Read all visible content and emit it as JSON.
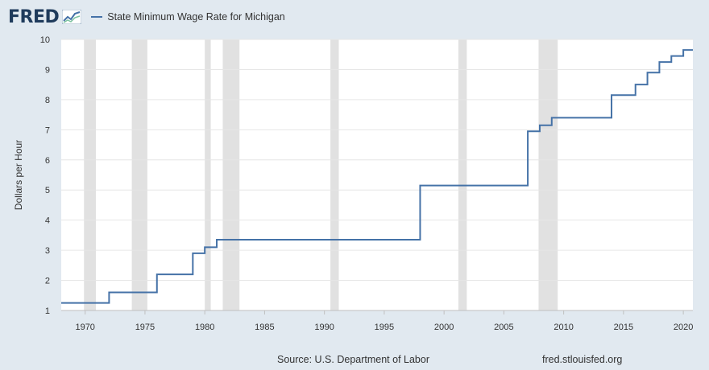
{
  "header": {
    "logo": "FRED",
    "logo_icon": "chart-line-icon"
  },
  "footer": {
    "source": "Source: U.S. Department of Labor",
    "url": "fred.stlouisfed.org"
  },
  "colors": {
    "background": "#e1e9f0",
    "plot_background": "#ffffff",
    "series": "#4572a7",
    "recession": "#e1e1e1",
    "grid": "#e6e6e6"
  },
  "chart_data": {
    "type": "line",
    "step": true,
    "title": "",
    "xlabel": "",
    "ylabel": "Dollars per Hour",
    "xlim": [
      1968,
      2020.8
    ],
    "ylim": [
      1,
      10
    ],
    "x_ticks": [
      1970,
      1975,
      1980,
      1985,
      1990,
      1995,
      2000,
      2005,
      2010,
      2015,
      2020
    ],
    "y_ticks": [
      1,
      2,
      3,
      4,
      5,
      6,
      7,
      8,
      9,
      10
    ],
    "grid": true,
    "legend": "top-left",
    "recessions": [
      [
        1969.9,
        1970.9
      ],
      [
        1973.9,
        1975.2
      ],
      [
        1980.0,
        1980.5
      ],
      [
        1981.5,
        1982.9
      ],
      [
        1990.5,
        1991.2
      ],
      [
        2001.2,
        2001.9
      ],
      [
        2007.9,
        2009.5
      ]
    ],
    "series": [
      {
        "name": "State Minimum Wage Rate for Michigan",
        "x": [
          1968,
          1972,
          1976,
          1979,
          1980,
          1981,
          1998,
          2007,
          2008,
          2009,
          2014,
          2016,
          2017,
          2018,
          2019,
          2020,
          2020.8
        ],
        "values": [
          1.25,
          1.6,
          2.2,
          2.9,
          3.1,
          3.35,
          5.15,
          6.95,
          7.15,
          7.4,
          8.15,
          8.5,
          8.9,
          9.25,
          9.45,
          9.65,
          9.65
        ]
      }
    ]
  }
}
